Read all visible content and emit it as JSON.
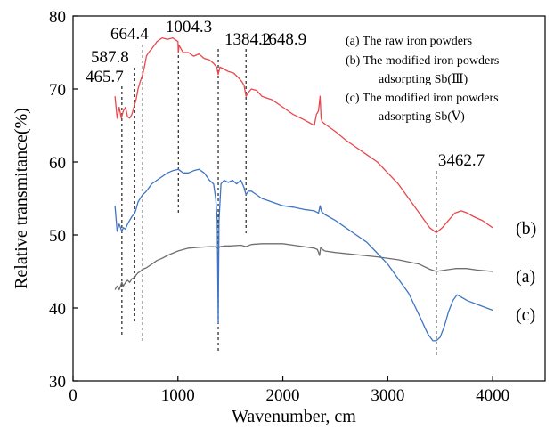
{
  "chart_data": {
    "type": "line",
    "xlabel": "Wavenumber, cm",
    "ylabel": "Relative transmitance(%)",
    "xlim": [
      0,
      4500
    ],
    "ylim": [
      30,
      80
    ],
    "xticks": [
      0,
      1000,
      2000,
      3000,
      4000
    ],
    "yticks": [
      30,
      40,
      50,
      60,
      70,
      80
    ],
    "grid": false,
    "legend_position": "top-right",
    "legend": [
      "(a) The raw iron powders",
      "(b) The modified iron powders",
      "adsorpting Sb(Ⅲ)",
      "(c) The modified iron powders",
      "adsorpting Sb(Ⅴ)"
    ],
    "peaks": [
      {
        "label": "465.7",
        "x": 465.7
      },
      {
        "label": "587.8",
        "x": 587.8
      },
      {
        "label": "664.4",
        "x": 664.4
      },
      {
        "label": "1004.3",
        "x": 1004.3
      },
      {
        "label": "1384.2",
        "x": 1384.2
      },
      {
        "label": "1648.9",
        "x": 1648.9
      },
      {
        "label": "3462.7",
        "x": 3462.7
      }
    ],
    "series": [
      {
        "label": "(b)",
        "color": "#e8484b",
        "x": [
          400,
          420,
          440,
          460,
          480,
          500,
          520,
          540,
          560,
          580,
          600,
          620,
          640,
          664,
          680,
          700,
          720,
          750,
          800,
          850,
          900,
          950,
          1000,
          1004,
          1010,
          1030,
          1050,
          1100,
          1150,
          1200,
          1250,
          1300,
          1340,
          1370,
          1384,
          1400,
          1430,
          1480,
          1530,
          1580,
          1610,
          1630,
          1649,
          1670,
          1700,
          1750,
          1800,
          1900,
          2000,
          2100,
          2200,
          2300,
          2320,
          2340,
          2355,
          2365,
          2375,
          2400,
          2500,
          2600,
          2700,
          2800,
          2900,
          3000,
          3100,
          3200,
          3300,
          3400,
          3463,
          3520,
          3580,
          3640,
          3700,
          3760,
          3820,
          3900,
          4000
        ],
        "y": [
          69.0,
          66.0,
          67.5,
          66.0,
          67.0,
          67.5,
          66.2,
          66.0,
          66.5,
          67.5,
          68.5,
          70.0,
          71.0,
          72.0,
          73.0,
          74.5,
          75.0,
          75.5,
          76.5,
          77.0,
          76.8,
          77.0,
          76.5,
          75.0,
          76.0,
          75.5,
          75.0,
          75.0,
          74.5,
          74.8,
          74.2,
          74.0,
          73.5,
          73.0,
          72.0,
          73.0,
          72.8,
          72.4,
          72.2,
          71.5,
          71.0,
          70.5,
          69.0,
          69.5,
          70.0,
          69.8,
          69.0,
          68.5,
          67.5,
          66.5,
          65.8,
          65.0,
          66.5,
          67.0,
          69.0,
          66.0,
          65.5,
          65.2,
          64.2,
          63.0,
          62.0,
          61.0,
          60.0,
          58.5,
          57.0,
          55.0,
          53.0,
          51.0,
          50.3,
          51.0,
          52.0,
          53.0,
          53.3,
          53.0,
          52.5,
          52.0,
          51.0
        ]
      },
      {
        "label": "(a)",
        "color": "#6e6e6e",
        "x": [
          400,
          420,
          440,
          465,
          480,
          500,
          520,
          540,
          560,
          588,
          600,
          620,
          640,
          664,
          700,
          750,
          800,
          850,
          900,
          950,
          1000,
          1050,
          1100,
          1200,
          1300,
          1350,
          1384,
          1400,
          1450,
          1500,
          1600,
          1649,
          1700,
          1800,
          1900,
          2000,
          2100,
          2200,
          2300,
          2330,
          2350,
          2360,
          2380,
          2400,
          2500,
          2700,
          2900,
          3100,
          3300,
          3400,
          3463,
          3550,
          3650,
          3750,
          3850,
          4000
        ],
        "y": [
          42.5,
          43.0,
          42.5,
          43.5,
          43.0,
          43.5,
          43.8,
          43.5,
          44.0,
          44.2,
          44.5,
          44.8,
          45.0,
          45.3,
          45.5,
          46.0,
          46.5,
          46.8,
          47.2,
          47.5,
          47.8,
          48.0,
          48.2,
          48.3,
          48.4,
          48.4,
          48.2,
          48.4,
          48.5,
          48.5,
          48.6,
          48.4,
          48.7,
          48.8,
          48.8,
          48.8,
          48.6,
          48.4,
          48.2,
          48.0,
          47.2,
          48.3,
          48.0,
          47.8,
          47.6,
          47.3,
          47.0,
          46.6,
          46.0,
          45.3,
          45.0,
          45.2,
          45.4,
          45.4,
          45.2,
          45.0
        ]
      },
      {
        "label": "(c)",
        "color": "#3f75c4",
        "x": [
          400,
          420,
          440,
          465,
          480,
          500,
          520,
          540,
          560,
          588,
          600,
          620,
          640,
          664,
          700,
          750,
          800,
          850,
          900,
          950,
          1004,
          1050,
          1100,
          1150,
          1200,
          1250,
          1300,
          1340,
          1360,
          1375,
          1384,
          1392,
          1410,
          1440,
          1480,
          1520,
          1560,
          1600,
          1630,
          1649,
          1670,
          1700,
          1750,
          1800,
          1900,
          2000,
          2100,
          2200,
          2300,
          2340,
          2355,
          2370,
          2400,
          2500,
          2600,
          2700,
          2800,
          2900,
          3000,
          3100,
          3200,
          3300,
          3380,
          3430,
          3463,
          3500,
          3540,
          3580,
          3620,
          3660,
          3700,
          3760,
          3850,
          4000
        ],
        "y": [
          54.0,
          50.5,
          51.5,
          50.5,
          51.0,
          50.8,
          51.5,
          52.0,
          52.5,
          53.0,
          53.5,
          54.5,
          55.0,
          55.5,
          56.0,
          57.0,
          57.5,
          58.0,
          58.5,
          58.8,
          59.0,
          58.5,
          58.5,
          58.8,
          59.0,
          58.5,
          57.5,
          57.0,
          55.0,
          52.0,
          38.0,
          52.0,
          57.0,
          57.5,
          57.2,
          57.5,
          57.0,
          57.5,
          56.5,
          55.5,
          56.0,
          56.0,
          55.5,
          55.0,
          54.5,
          54.0,
          53.8,
          53.5,
          53.3,
          53.0,
          54.0,
          53.2,
          52.8,
          52.0,
          51.0,
          50.0,
          49.0,
          47.5,
          46.0,
          44.0,
          42.0,
          39.0,
          36.5,
          35.5,
          35.5,
          36.0,
          37.5,
          39.5,
          41.0,
          41.8,
          41.5,
          41.0,
          40.5,
          39.7
        ]
      }
    ]
  }
}
